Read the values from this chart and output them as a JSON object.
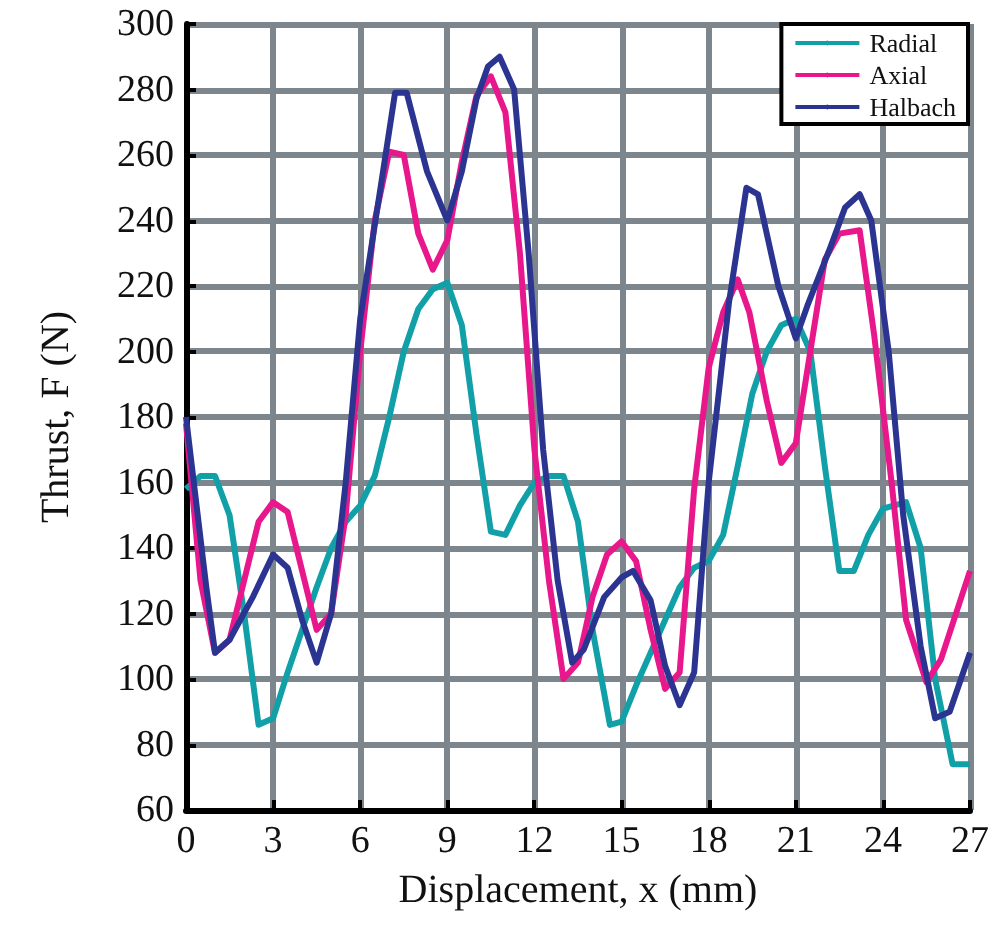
{
  "chart_data": {
    "type": "line",
    "xlabel": "Displacement, x (mm)",
    "ylabel": "Thrust, F (N)",
    "xlim": [
      0,
      27
    ],
    "xticks": [
      0,
      3,
      6,
      9,
      12,
      15,
      18,
      21,
      24,
      27
    ],
    "ylim": [
      60,
      300
    ],
    "yticks": [
      60,
      80,
      100,
      120,
      140,
      160,
      180,
      200,
      220,
      240,
      260,
      280,
      300
    ],
    "grid": true,
    "legend": "top right",
    "marker": "none",
    "line_style": "solid",
    "series": [
      {
        "name": "Radial",
        "color": "#11a0a8",
        "x": [
          0,
          0.5,
          1,
          1.5,
          2,
          2.5,
          3,
          3.5,
          4,
          4.5,
          5,
          5.5,
          6,
          6.5,
          7,
          7.5,
          8,
          8.5,
          9,
          9.5,
          10,
          10.5,
          11,
          11.5,
          12,
          12.5,
          13,
          13.5,
          14,
          14.6,
          15,
          15.5,
          16,
          16.5,
          17,
          17.5,
          18,
          18.5,
          19,
          19.5,
          20,
          20.5,
          21,
          21.5,
          22,
          22.5,
          23,
          23.5,
          24,
          24.8,
          25.3,
          25.8,
          26.4,
          27
        ],
        "values": [
          158,
          162,
          162,
          150,
          120,
          86,
          88,
          102,
          115,
          128,
          140,
          148,
          153,
          162,
          180,
          200,
          213,
          219,
          221,
          208,
          175,
          145,
          144,
          153,
          160,
          162,
          162,
          148,
          115,
          86,
          87,
          98,
          108,
          118,
          128,
          134,
          136,
          144,
          165,
          187,
          200,
          208,
          210,
          200,
          165,
          133,
          133,
          144,
          152,
          154,
          140,
          100,
          74,
          74
        ]
      },
      {
        "name": "Axial",
        "color": "#e8188c",
        "x": [
          0,
          0.5,
          1,
          1.5,
          2,
          2.5,
          3,
          3.5,
          4,
          4.5,
          5,
          5.5,
          6,
          6.5,
          7,
          7.5,
          8,
          8.5,
          9,
          9.5,
          10,
          10.5,
          11,
          11.5,
          12,
          12.5,
          13,
          13.5,
          14,
          14.5,
          15,
          15.5,
          16,
          16.5,
          17,
          17.5,
          18,
          18.5,
          19,
          19.4,
          20,
          20.5,
          21,
          21.5,
          22,
          22.5,
          23.2,
          23.7,
          24.3,
          24.8,
          25.5,
          26,
          27
        ],
        "values": [
          178,
          130,
          108,
          112,
          130,
          148,
          154,
          151,
          133,
          115,
          120,
          150,
          200,
          240,
          261,
          260,
          236,
          225,
          234,
          258,
          278,
          284,
          273,
          230,
          170,
          130,
          100,
          105,
          125,
          138,
          142,
          136,
          115,
          97,
          102,
          158,
          195,
          212,
          222,
          212,
          185,
          166,
          172,
          200,
          228,
          236,
          237,
          205,
          160,
          118,
          99,
          106,
          133
        ]
      },
      {
        "name": "Halbach",
        "color": "#2b3591",
        "x": [
          0,
          0.7,
          1,
          1.5,
          2.3,
          3,
          3.5,
          4,
          4.5,
          5,
          5.5,
          6,
          6.7,
          7.2,
          7.6,
          8.3,
          9,
          9.5,
          10,
          10.4,
          10.8,
          11.3,
          11.8,
          12.3,
          12.8,
          13.3,
          13.7,
          14.4,
          15,
          15.4,
          16,
          16.5,
          17,
          17.5,
          18,
          18.7,
          19.3,
          19.7,
          20.4,
          21,
          21.4,
          22.2,
          22.7,
          23.2,
          23.6,
          24.2,
          24.7,
          25.3,
          25.8,
          26.3,
          27
        ],
        "values": [
          180,
          128,
          108,
          112,
          125,
          138,
          134,
          118,
          105,
          120,
          160,
          210,
          250,
          279,
          279,
          255,
          240,
          255,
          277,
          287,
          290,
          280,
          230,
          170,
          130,
          105,
          109,
          125,
          131,
          133,
          124,
          104,
          92,
          102,
          160,
          215,
          250,
          248,
          220,
          204,
          214,
          232,
          244,
          248,
          240,
          200,
          150,
          110,
          88,
          90,
          108
        ]
      }
    ]
  }
}
